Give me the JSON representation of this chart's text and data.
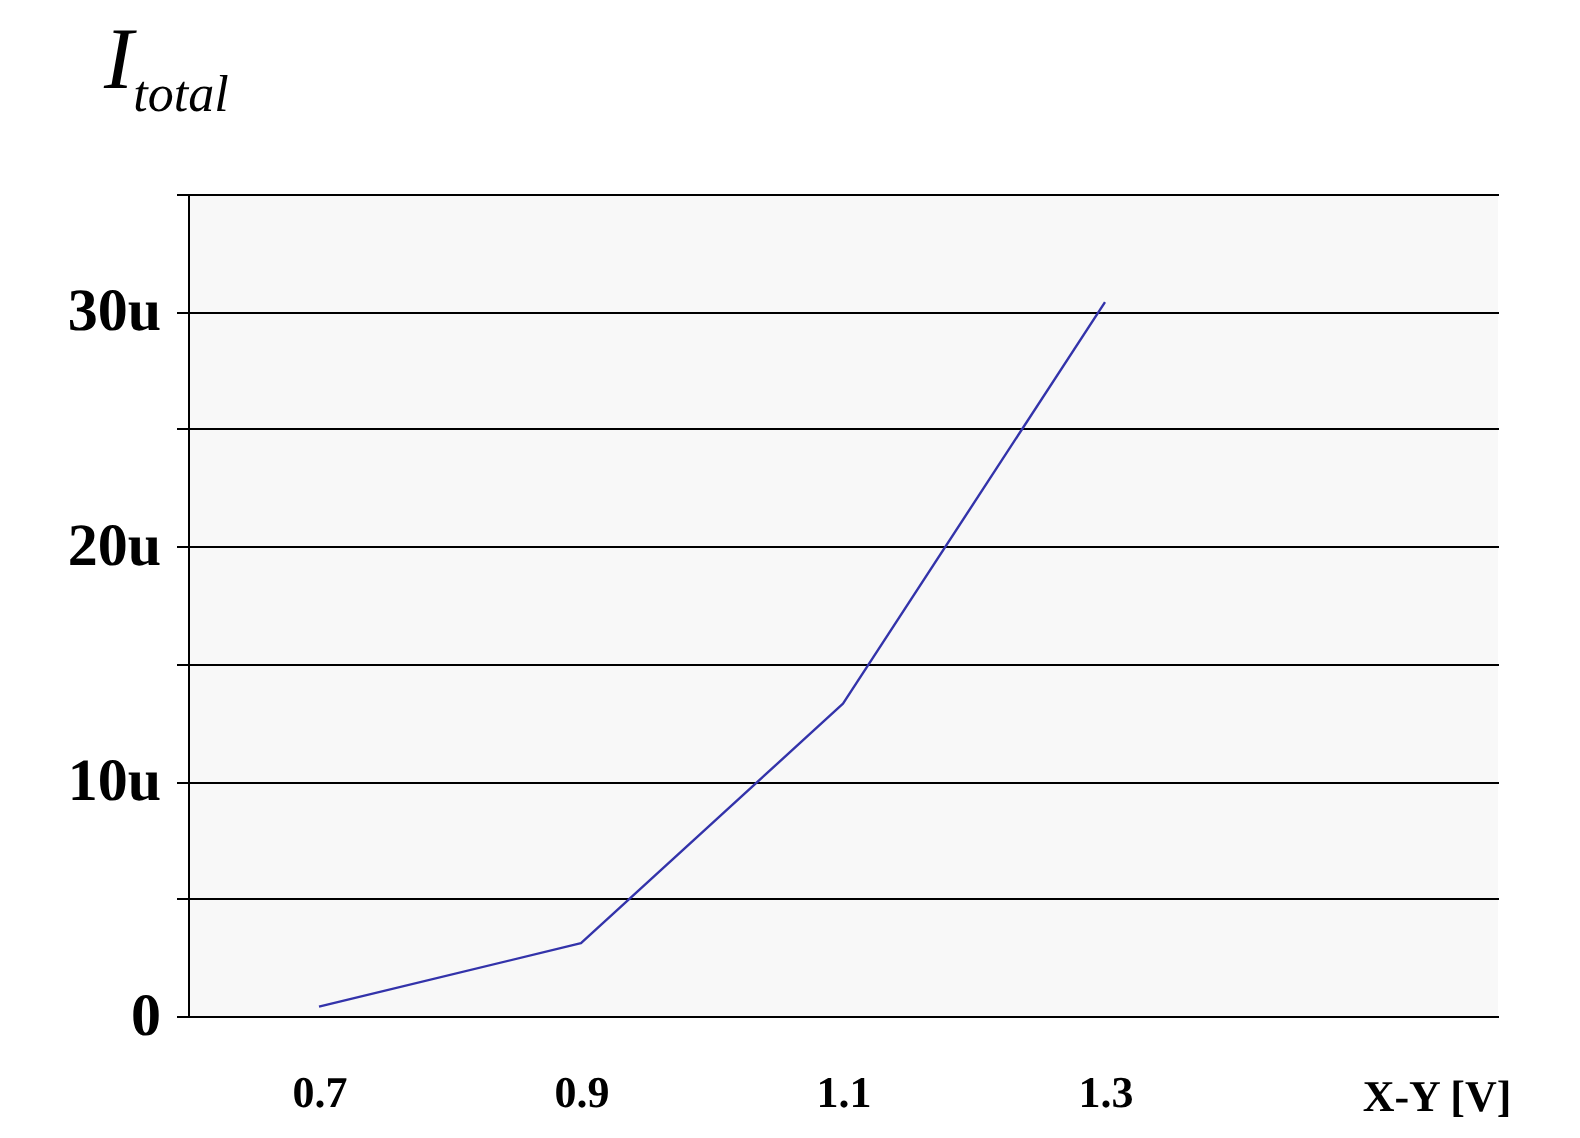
{
  "chart_data": {
    "type": "line",
    "ylabel": "I$_{total}$",
    "xlabel": "X-Y [V]",
    "categories": [
      "0.7",
      "0.9",
      "1.1",
      "1.3"
    ],
    "values": [
      0.4,
      3.1,
      13.3,
      30.4
    ],
    "color": "#3333aa",
    "ylim": [
      0,
      35
    ],
    "yticks": [
      {
        "value": 0,
        "label": "0"
      },
      {
        "value": 5,
        "label": null
      },
      {
        "value": 10,
        "label": "10u"
      },
      {
        "value": 15,
        "label": null
      },
      {
        "value": 20,
        "label": "20u"
      },
      {
        "value": 25,
        "label": null
      },
      {
        "value": 30,
        "label": "30u"
      },
      {
        "value": 35,
        "label": null
      }
    ],
    "grid": "y",
    "marker": "none"
  }
}
